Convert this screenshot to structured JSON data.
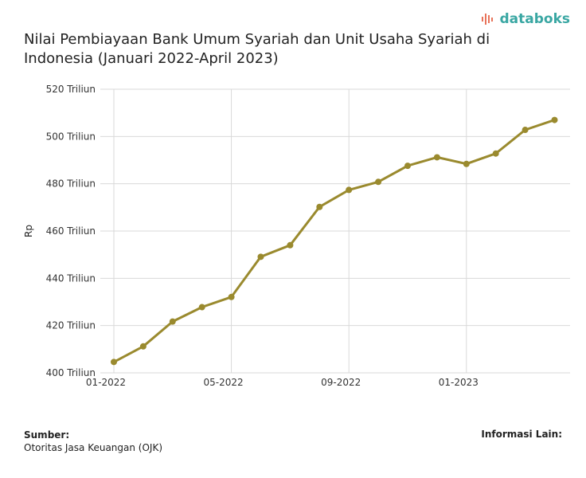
{
  "brand": {
    "name": "databoks"
  },
  "footer": {
    "source_label": "Sumber:",
    "source_value": "Otoritas Jasa Keuangan (OJK)",
    "info_label": "Informasi Lain:"
  },
  "chart_data": {
    "type": "line",
    "title": "Nilai Pembiayaan Bank Umum Syariah dan Unit Usaha Syariah di Indonesia (Januari 2022-April 2023)",
    "ylabel": "Rp",
    "xlabel": "",
    "y_ticks": [
      400,
      420,
      440,
      460,
      480,
      500,
      520
    ],
    "y_tick_labels": [
      "400 Triliun",
      "420 Triliun",
      "440 Triliun",
      "460 Triliun",
      "480 Triliun",
      "500 Triliun",
      "520 Triliun"
    ],
    "ylim": [
      400,
      520
    ],
    "x": [
      "2022-01",
      "2022-02",
      "2022-03",
      "2022-04",
      "2022-05",
      "2022-06",
      "2022-07",
      "2022-08",
      "2022-09",
      "2022-10",
      "2022-11",
      "2022-12",
      "2023-01",
      "2023-02",
      "2023-03",
      "2023-04"
    ],
    "x_ticks": [
      "2022-01",
      "2022-05",
      "2022-09",
      "2023-01"
    ],
    "x_tick_labels": [
      "01-2022",
      "05-2022",
      "09-2022",
      "01-2023"
    ],
    "values": [
      404.6,
      411.2,
      421.7,
      427.8,
      432.1,
      449.1,
      454.0,
      470.2,
      477.4,
      480.8,
      487.6,
      491.2,
      488.4,
      492.8,
      502.8,
      507.0
    ],
    "color": "#9a8a2e",
    "grid": true
  }
}
